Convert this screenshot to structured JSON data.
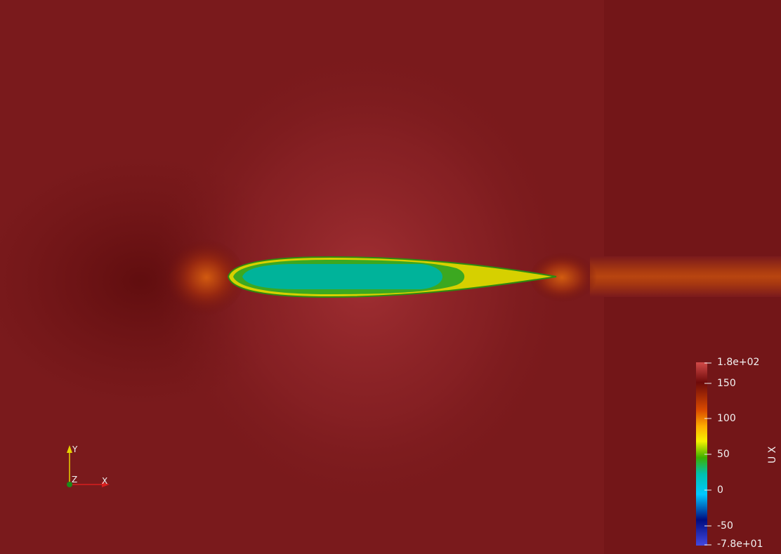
{
  "colorbar": {
    "title": "U X",
    "ticks": [
      "1.8e+02",
      "150",
      "100",
      "50",
      "0",
      "-50",
      "-7.8e+01"
    ],
    "stops": [
      "#d24a48",
      "#6e0a0a",
      "#d94a00",
      "#ffad00",
      "#f6f000",
      "#3caf00",
      "#00c0b0",
      "#00c8ff",
      "#000c80",
      "#4348e0"
    ]
  },
  "axes": {
    "y_label": "Y",
    "x_label": "X",
    "z_label": "Z",
    "y_color": "#e6d200",
    "x_color": "#d81e1e",
    "z_color": "#1a8a1a"
  },
  "field": {
    "background": "#7a1a1c",
    "airfoil_core": "#00b8a0",
    "airfoil_edge": "#d6d000"
  }
}
